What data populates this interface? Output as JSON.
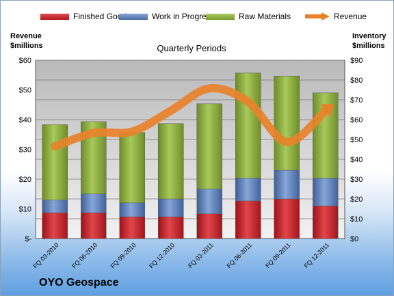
{
  "chart_data": {
    "type": "bar",
    "stacked": true,
    "title": "Quarterly Periods",
    "company": "OYO Geospace",
    "y_left_title": [
      "Revenue",
      "$millions"
    ],
    "y_right_title": [
      "Inventory",
      "$millions"
    ],
    "y_left_ticks": [
      "$-",
      "$10",
      "$20",
      "$30",
      "$40",
      "$50",
      "$60"
    ],
    "y_right_ticks": [
      "$0",
      "$10",
      "$20",
      "$30",
      "$40",
      "$50",
      "$60",
      "$70",
      "$80",
      "$90"
    ],
    "ylim_left": [
      0,
      60
    ],
    "ylim_right": [
      0,
      90
    ],
    "grid": true,
    "legend_position": "top",
    "categories": [
      "FQ 03-2010",
      "FQ 06-2010",
      "FQ 09-2010",
      "FQ 12-2010",
      "FQ 03-2011",
      "FQ 06-2011",
      "FQ 09-2011",
      "FQ 12-2011"
    ],
    "series": [
      {
        "name": "Finished Goods",
        "axis": "right",
        "color": "#c0262c",
        "values": [
          13,
          13,
          11,
          11,
          12.5,
          19,
          20,
          16.5
        ]
      },
      {
        "name": "Work in Progress",
        "axis": "right",
        "color": "#5b7fb9",
        "values": [
          6.5,
          9.5,
          7,
          9,
          12.5,
          11.5,
          14.5,
          14
        ]
      },
      {
        "name": "Raw Materials",
        "axis": "right",
        "color": "#8eb03e",
        "values": [
          38,
          36.5,
          35.5,
          38,
          43,
          53,
          47.5,
          43
        ]
      },
      {
        "name": "Revenue",
        "axis": "left",
        "type": "line",
        "color": "#e8822a",
        "values": [
          31,
          35.5,
          36,
          43,
          50.5,
          46,
          32.5,
          43
        ]
      }
    ]
  }
}
